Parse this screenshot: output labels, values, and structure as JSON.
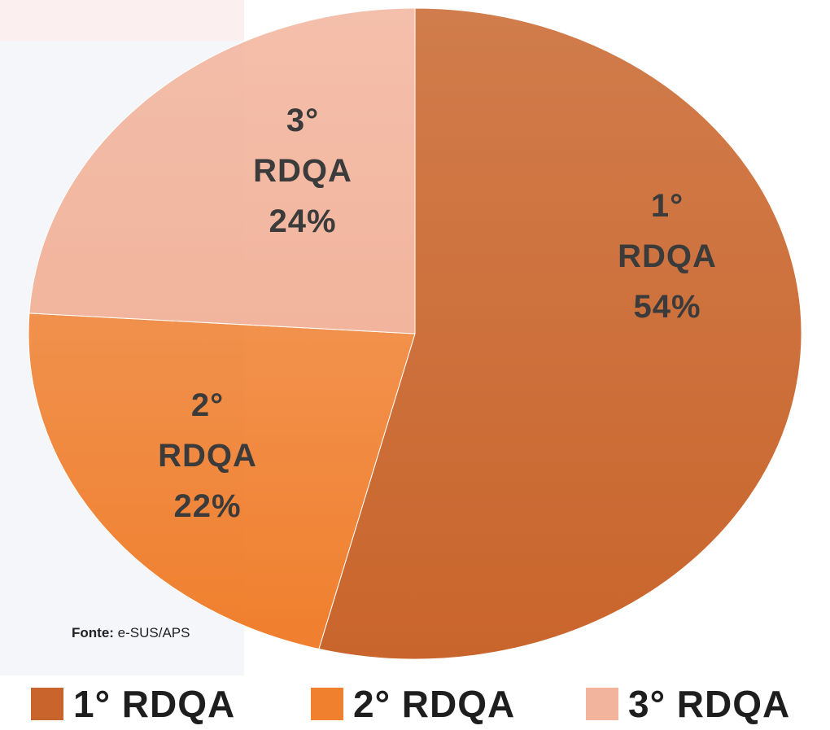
{
  "chart_data": {
    "type": "pie",
    "categories": [
      "1° RDQA",
      "2° RDQA",
      "3° RDQA"
    ],
    "values": [
      54,
      22,
      24
    ],
    "value_labels": [
      "54%",
      "22%",
      "24%"
    ],
    "colors": [
      "#c9652c",
      "#f07f2e",
      "#f2b49c"
    ],
    "legend": "bottom",
    "source_label": "Fonte:",
    "source": "e-SUS/APS"
  }
}
